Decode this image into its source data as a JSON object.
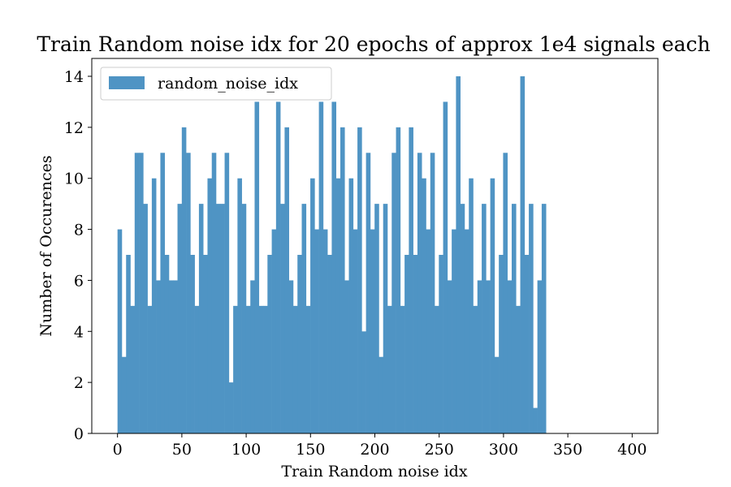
{
  "chart_data": {
    "type": "bar",
    "title": "Train Random noise idx for 20 epochs of approx 1e4 signals each",
    "xlabel": "Train Random noise idx",
    "ylabel": "Number of Occurences",
    "xlim": [
      -20,
      420
    ],
    "ylim": [
      0,
      14.7
    ],
    "xticks": [
      0,
      50,
      100,
      150,
      200,
      250,
      300,
      350,
      400
    ],
    "yticks": [
      0,
      2,
      4,
      6,
      8,
      10,
      12,
      14
    ],
    "bin_start": 0,
    "bin_width": 3.33,
    "bar_color": "#4f94c4",
    "legend": {
      "position": "top-left",
      "entries": [
        "random_noise_idx"
      ]
    },
    "grid": false,
    "series": [
      {
        "name": "random_noise_idx",
        "values": [
          8,
          3,
          7,
          5,
          11,
          11,
          9,
          5,
          10,
          6,
          11,
          7,
          6,
          6,
          9,
          12,
          11,
          7,
          5,
          9,
          7,
          10,
          11,
          9,
          9,
          11,
          2,
          5,
          10,
          9,
          5,
          6,
          13,
          5,
          5,
          7,
          8,
          13,
          9,
          12,
          6,
          5,
          7,
          9,
          5,
          10,
          8,
          13,
          8,
          7,
          13,
          10,
          12,
          6,
          10,
          8,
          12,
          4,
          11,
          8,
          9,
          3,
          9,
          5,
          11,
          12,
          5,
          7,
          12,
          7,
          11,
          10,
          8,
          11,
          5,
          7,
          13,
          6,
          8,
          14,
          9,
          8,
          10,
          5,
          6,
          9,
          6,
          10,
          3,
          7,
          11,
          6,
          9,
          5,
          14,
          7,
          9,
          1,
          6,
          9
        ]
      }
    ]
  }
}
